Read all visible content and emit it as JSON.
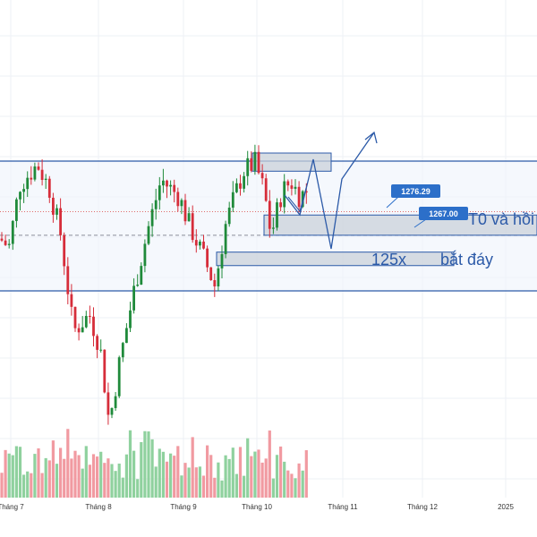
{
  "colors": {
    "up": "#1f8a3a",
    "down": "#d62d3a",
    "vol_up": "#8fd19e",
    "vol_down": "#f19aa1",
    "channel": "#2c5aa8",
    "zone_fill": "#c9d1d9",
    "zone_border": "#2c5aa8",
    "label_bg": "#2c6fc9",
    "grid": "#eef1f5",
    "dotted_red": "#e06b6b",
    "dashed_gray": "#8a8f99"
  },
  "chart_data": {
    "type": "candlestick",
    "x_ticks": [
      "Tháng 7",
      "Tháng 8",
      "Tháng 9",
      "Tháng 10",
      "Tháng 11",
      "Tháng 12",
      "2025"
    ],
    "levels": {
      "channel_top": 1306,
      "channel_bottom": 1229,
      "resistance_zone": [
        1300,
        1306
      ],
      "zone_mid": [
        1262,
        1274
      ],
      "zone_low": [
        1244,
        1252
      ],
      "price_a": 1276.29,
      "price_b": 1267.0,
      "dotted_red": 1276,
      "dashed_gray": 1262
    },
    "callouts": [
      {
        "label": "1276.29",
        "value": 1276.29
      },
      {
        "label": "1267.00",
        "value": 1267.0
      }
    ],
    "annotations": [
      "T0 và hồi",
      "125x",
      "bắt đáy"
    ],
    "grid": true
  }
}
